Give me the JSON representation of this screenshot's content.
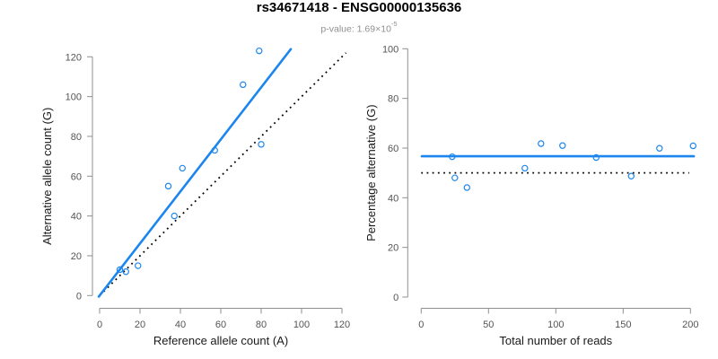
{
  "header": {
    "title": "rs34671418 - ENSG00000135636",
    "p_value_base": "p-value: 1.69×10",
    "p_value_exponent": "-5"
  },
  "colors": {
    "accent_blue": "#1c86ee",
    "reference_black": "#000000",
    "axis_gray": "#8f8f8f",
    "tick_label_gray": "#545454",
    "axis_title_dark": "#1a1a1a",
    "subtitle_gray": "#8f8f8f",
    "title_black": "#000000",
    "background": "#ffffff"
  },
  "chart_data": [
    {
      "type": "scatter",
      "name": "allele-counts",
      "xlabel": "Reference allele count (A)",
      "ylabel": "Alternative allele count (G)",
      "xlim": [
        0,
        120
      ],
      "ylim": [
        0,
        120
      ],
      "xticks": [
        0,
        20,
        40,
        60,
        80,
        100,
        120
      ],
      "yticks": [
        0,
        20,
        40,
        60,
        80,
        100,
        120
      ],
      "grid": false,
      "legend": "none",
      "points": [
        [
          10,
          13
        ],
        [
          13,
          12
        ],
        [
          19,
          15
        ],
        [
          34,
          55
        ],
        [
          37,
          40
        ],
        [
          41,
          64
        ],
        [
          57,
          73
        ],
        [
          71,
          106
        ],
        [
          79,
          123
        ],
        [
          80,
          76
        ]
      ],
      "regression_line": {
        "style": "solid",
        "slope": 1.308,
        "intercept": 0,
        "x_range": [
          -0.4,
          94.7
        ]
      },
      "reference_line": {
        "style": "dotted",
        "slope": 1,
        "intercept": 0,
        "x_range": [
          2,
          122
        ]
      }
    },
    {
      "type": "scatter",
      "name": "percentage-vs-reads",
      "xlabel": "Total number of reads",
      "ylabel": "Percentage alternative (G)",
      "xlim": [
        0,
        200
      ],
      "ylim": [
        0,
        100
      ],
      "xticks": [
        0,
        50,
        100,
        150,
        200
      ],
      "yticks": [
        0,
        20,
        40,
        60,
        80,
        100
      ],
      "grid": false,
      "legend": "none",
      "points": [
        [
          23,
          56.5
        ],
        [
          25,
          48
        ],
        [
          34,
          44.1
        ],
        [
          77,
          51.9
        ],
        [
          89,
          61.8
        ],
        [
          105,
          61
        ],
        [
          130,
          56.2
        ],
        [
          156,
          48.7
        ],
        [
          177,
          59.9
        ],
        [
          202,
          60.9
        ]
      ],
      "regression_line": {
        "style": "solid",
        "slope": 0,
        "intercept": 56.7,
        "x_range": [
          0.5,
          202.5
        ]
      },
      "reference_line": {
        "style": "dotted",
        "slope": 0,
        "intercept": 50,
        "x_range": [
          0,
          199
        ]
      }
    }
  ]
}
